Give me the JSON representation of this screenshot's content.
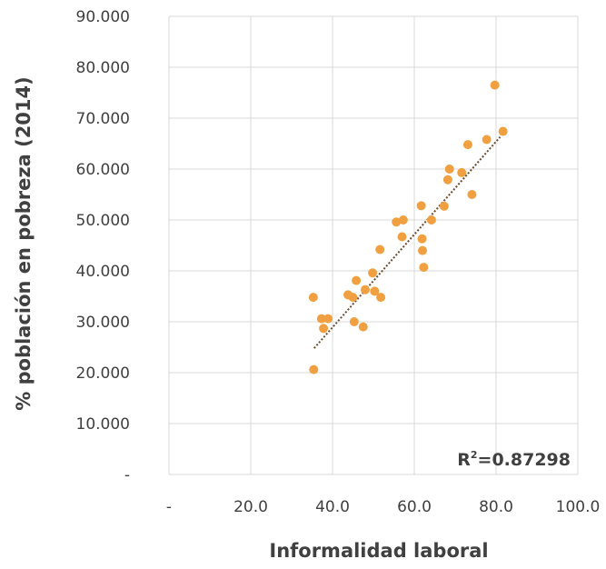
{
  "chart_data": {
    "type": "scatter",
    "xlabel": "Informalidad laboral",
    "ylabel": "% población en pobreza (2014)",
    "xlim": [
      0,
      100
    ],
    "ylim": [
      0,
      90
    ],
    "x_ticks": [
      0,
      20,
      40,
      60,
      80,
      100
    ],
    "x_tick_labels": [
      "-",
      "20.0",
      "40.0",
      "60.0",
      "80.0",
      "100.0"
    ],
    "y_ticks": [
      0,
      10,
      20,
      30,
      40,
      50,
      60,
      70,
      80,
      90
    ],
    "y_tick_labels": [
      "-",
      "10.000",
      "20.000",
      "30.000",
      "40.000",
      "50.000",
      "60.000",
      "70.000",
      "80.000",
      "90.000"
    ],
    "grid": true,
    "point_color": "#f0a040",
    "trendline_color": "#6b4a2e",
    "trendline": {
      "x": [
        35.5,
        81.0
      ],
      "y": [
        24.8,
        66.3
      ]
    },
    "r2_base": "R",
    "r2_sup": "2",
    "r2_value": "=0.87298",
    "points": [
      [
        35.3,
        34.8
      ],
      [
        35.4,
        20.6
      ],
      [
        37.3,
        30.6
      ],
      [
        37.8,
        28.7
      ],
      [
        38.9,
        30.6
      ],
      [
        43.8,
        35.3
      ],
      [
        45.0,
        34.8
      ],
      [
        45.3,
        30.0
      ],
      [
        45.8,
        38.1
      ],
      [
        47.5,
        29.0
      ],
      [
        48.0,
        36.3
      ],
      [
        49.8,
        39.6
      ],
      [
        50.3,
        36.0
      ],
      [
        51.6,
        44.2
      ],
      [
        51.8,
        34.8
      ],
      [
        55.6,
        49.6
      ],
      [
        57.0,
        46.7
      ],
      [
        57.3,
        50.0
      ],
      [
        61.7,
        52.8
      ],
      [
        61.9,
        46.3
      ],
      [
        62.0,
        44.0
      ],
      [
        62.3,
        40.7
      ],
      [
        64.2,
        50.0
      ],
      [
        67.3,
        52.7
      ],
      [
        68.2,
        57.9
      ],
      [
        68.6,
        60.0
      ],
      [
        71.6,
        59.3
      ],
      [
        73.1,
        64.8
      ],
      [
        74.1,
        55.0
      ],
      [
        77.7,
        65.8
      ],
      [
        79.7,
        76.5
      ],
      [
        81.7,
        67.4
      ]
    ]
  }
}
